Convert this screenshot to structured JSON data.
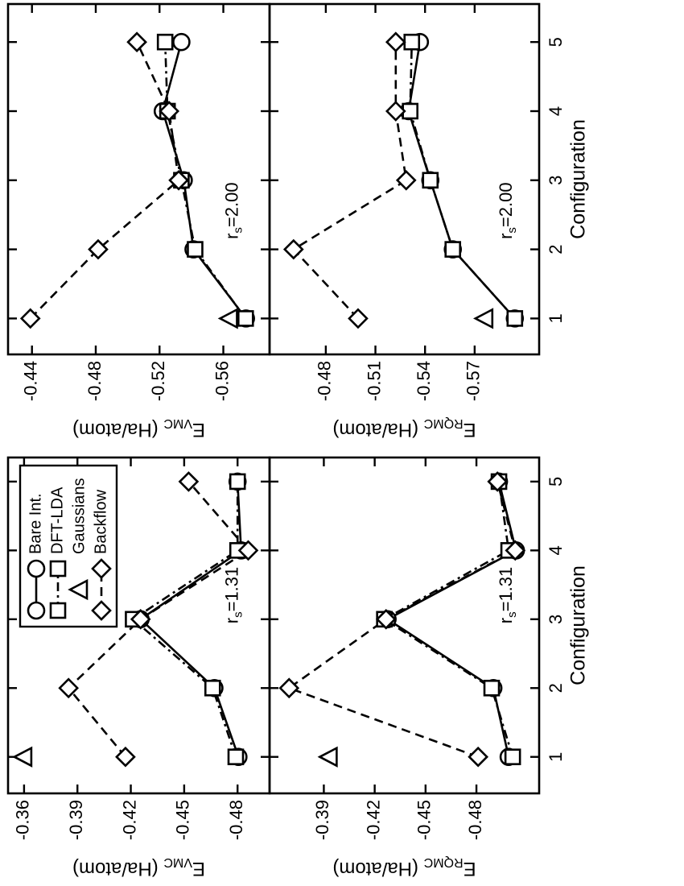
{
  "chart_data": [
    {
      "type": "line",
      "ylabel": {
        "base": "E",
        "subscript": "VMC",
        "text": " (Ha/atom)"
      },
      "annotation": {
        "base": "r",
        "subscript": "s",
        "text": "=1.31"
      },
      "x": [
        1,
        2,
        3,
        4,
        5
      ],
      "xlim": [
        0.47,
        5.35
      ],
      "xticks": [
        1,
        2,
        3,
        4,
        5
      ],
      "show_xtick_labels": false,
      "ylim": [
        -0.498,
        -0.351
      ],
      "yticks": [
        -0.36,
        -0.39,
        -0.42,
        -0.45,
        -0.48
      ],
      "legend": "upper right",
      "series": [
        {
          "name": "Bare Int.",
          "marker": "circle",
          "line": "solid",
          "color": "#000000",
          "values": [
            -0.4805,
            -0.467,
            -0.4255,
            -0.482,
            -0.48
          ]
        },
        {
          "name": "DFT-LDA",
          "marker": "square",
          "line": "dashdot",
          "color": "#000000",
          "values": [
            -0.479,
            -0.466,
            -0.4213,
            -0.48,
            -0.48
          ]
        },
        {
          "name": "Gaussians",
          "marker": "triangle",
          "line": "none",
          "color": "#000000",
          "values": [
            -0.36,
            null,
            null,
            null,
            null
          ]
        },
        {
          "name": "Backflow",
          "marker": "diamond",
          "line": "dashed",
          "color": "#000000",
          "values": [
            -0.417,
            -0.385,
            -0.4255,
            -0.486,
            -0.4525
          ]
        }
      ]
    },
    {
      "type": "line",
      "ylabel": {
        "base": "E",
        "subscript": "RQMC",
        "text": " (Ha/atom)"
      },
      "xlabel": "Configuration",
      "annotation": {
        "base": "r",
        "subscript": "s",
        "text": "=1.31"
      },
      "x": [
        1,
        2,
        3,
        4,
        5
      ],
      "xlim": [
        0.47,
        5.35
      ],
      "xticks": [
        1,
        2,
        3,
        4,
        5
      ],
      "show_xtick_labels": true,
      "ylim": [
        -0.517,
        -0.358
      ],
      "yticks": [
        -0.39,
        -0.42,
        -0.45,
        -0.48
      ],
      "series": [
        {
          "values": [
            -0.499,
            -0.49,
            -0.4276,
            -0.5033,
            -0.4933
          ]
        },
        {
          "values": [
            -0.5014,
            -0.489,
            -0.4257,
            -0.499,
            -0.4933
          ]
        },
        {
          "values": [
            -0.3933,
            null,
            null,
            null,
            null
          ]
        },
        {
          "values": [
            -0.481,
            -0.3695,
            -0.4267,
            -0.5029,
            -0.4924
          ]
        }
      ]
    },
    {
      "type": "line",
      "ylabel": {
        "base": "E",
        "subscript": "VMC",
        "text": " (Ha/atom)"
      },
      "annotation": {
        "base": "r",
        "subscript": "s",
        "text": "=2.00"
      },
      "x": [
        1,
        2,
        3,
        4,
        5
      ],
      "xlim": [
        0.48,
        5.55
      ],
      "xticks": [
        1,
        2,
        3,
        4,
        5
      ],
      "show_xtick_labels": false,
      "ylim": [
        -0.589,
        -0.425
      ],
      "yticks": [
        -0.44,
        -0.48,
        -0.52,
        -0.56
      ],
      "series": [
        {
          "values": [
            -0.5742,
            -0.5413,
            -0.5352,
            -0.522,
            -0.5337
          ]
        },
        {
          "values": [
            -0.574,
            -0.5423,
            -0.5337,
            -0.525,
            -0.5235
          ]
        },
        {
          "values": [
            -0.564,
            null,
            null,
            null,
            null
          ]
        },
        {
          "values": [
            -0.439,
            -0.4815,
            -0.532,
            -0.526,
            -0.5058
          ]
        }
      ]
    },
    {
      "type": "line",
      "ylabel": {
        "base": "E",
        "subscript": "RQMC",
        "text": " (Ha/atom)"
      },
      "xlabel": "Configuration",
      "annotation": {
        "base": "r",
        "subscript": "s",
        "text": "=2.00"
      },
      "x": [
        1,
        2,
        3,
        4,
        5
      ],
      "xlim": [
        0.48,
        5.55
      ],
      "xticks": [
        1,
        2,
        3,
        4,
        5
      ],
      "show_xtick_labels": true,
      "ylim": [
        -0.609,
        -0.446
      ],
      "yticks": [
        -0.48,
        -0.51,
        -0.54,
        -0.57
      ],
      "series": [
        {
          "values": [
            -0.5943,
            -0.5568,
            -0.5432,
            -0.5301,
            -0.5369
          ]
        },
        {
          "values": [
            -0.5943,
            -0.5568,
            -0.5432,
            -0.531,
            -0.532
          ]
        },
        {
          "values": [
            -0.5763,
            null,
            null,
            null,
            null
          ]
        },
        {
          "values": [
            -0.4995,
            -0.4605,
            -0.5286,
            -0.5223,
            -0.5223
          ]
        }
      ]
    }
  ]
}
